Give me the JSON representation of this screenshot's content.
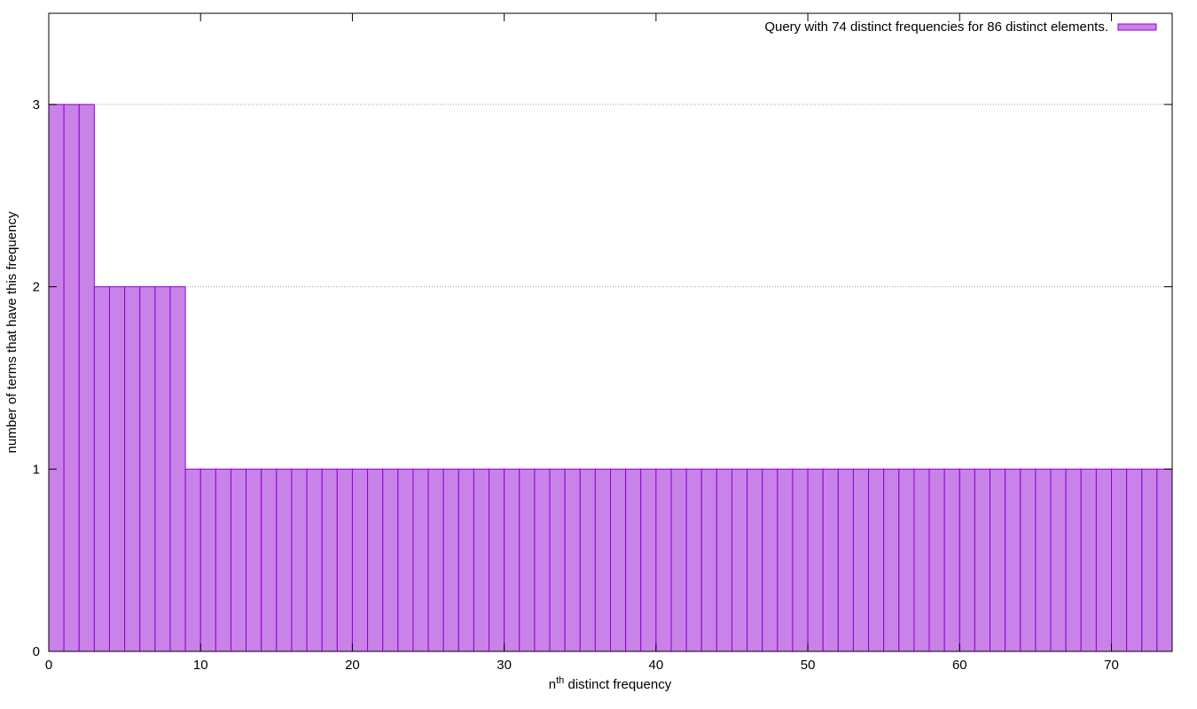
{
  "chart_data": {
    "type": "bar",
    "legend": {
      "label": "Query with 74 distinct frequencies for 86 distinct elements.",
      "placement": "top-right"
    },
    "xlabel": {
      "base": "n",
      "superscript": "th",
      "rest": " distinct frequency"
    },
    "ylabel": "number of terms that have this frequency",
    "xlim": [
      0,
      74
    ],
    "ylim": [
      0,
      3.5
    ],
    "x_ticks": [
      0,
      10,
      20,
      30,
      40,
      50,
      60,
      70
    ],
    "y_ticks": [
      0,
      1,
      2,
      3
    ],
    "grid": {
      "y": true,
      "x": false,
      "style": "dotted"
    },
    "bar_color": "#c882e8",
    "bar_edge_color": "#9400d3",
    "values": [
      3,
      3,
      3,
      2,
      2,
      2,
      2,
      2,
      2,
      1,
      1,
      1,
      1,
      1,
      1,
      1,
      1,
      1,
      1,
      1,
      1,
      1,
      1,
      1,
      1,
      1,
      1,
      1,
      1,
      1,
      1,
      1,
      1,
      1,
      1,
      1,
      1,
      1,
      1,
      1,
      1,
      1,
      1,
      1,
      1,
      1,
      1,
      1,
      1,
      1,
      1,
      1,
      1,
      1,
      1,
      1,
      1,
      1,
      1,
      1,
      1,
      1,
      1,
      1,
      1,
      1,
      1,
      1,
      1,
      1,
      1,
      1,
      1,
      1
    ]
  }
}
